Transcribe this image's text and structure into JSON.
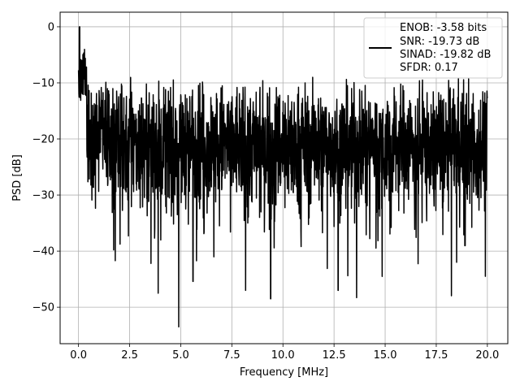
{
  "chart_data": {
    "type": "line",
    "title": "",
    "xlabel": "Frequency [MHz]",
    "ylabel": "PSD [dB]",
    "xlim": [
      -0.9,
      21.0
    ],
    "ylim": [
      -56.5,
      2.6
    ],
    "grid": true,
    "x_ticks": [
      0.0,
      2.5,
      5.0,
      7.5,
      10.0,
      12.5,
      15.0,
      17.5,
      20.0
    ],
    "x_tick_labels": [
      "0.0",
      "2.5",
      "5.0",
      "7.5",
      "10.0",
      "12.5",
      "15.0",
      "17.5",
      "20.0"
    ],
    "y_ticks": [
      0,
      -10,
      -20,
      -30,
      -40,
      -50
    ],
    "y_tick_labels": [
      "0",
      "−10",
      "−20",
      "−30",
      "−40",
      "−50"
    ],
    "legend": {
      "placement": "top-right",
      "entries": [
        "ENOB: -3.58 bits",
        "SNR: -19.73 dB",
        "SINAD: -19.82 dB",
        "SFDR: 0.17"
      ]
    },
    "series": [
      {
        "color": "#000000",
        "x_range": [
          0.0,
          20.0
        ],
        "description_values": {
          "peak": [
            0.05,
            0.0
          ],
          "deep_nulls": [
            [
              1.8,
              -41.7
            ],
            [
              3.9,
              -47.5
            ],
            [
              4.9,
              -53.7
            ],
            [
              5.6,
              -45.4
            ],
            [
              9.4,
              -48.5
            ],
            [
              12.7,
              -47.0
            ],
            [
              13.6,
              -48.3
            ],
            [
              18.5,
              -42.0
            ],
            [
              19.9,
              -44.5
            ]
          ]
        }
      }
    ]
  }
}
